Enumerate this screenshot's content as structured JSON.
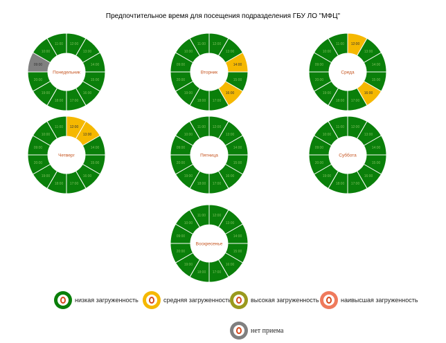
{
  "title": "Предпочтительное время для посещения подразделения ГБУ ЛО \"МФЦ\"",
  "colors": {
    "low": "#0a7f0a",
    "medium": "#f5b800",
    "high": "#9a9a1e",
    "highest": "#ef7a5c",
    "closed": "#808080"
  },
  "chart_data": [
    {
      "type": "pie",
      "day": "Понедельник",
      "slices": [
        {
          "label": "09:00",
          "status": "closed"
        },
        {
          "label": "10:00",
          "status": "low"
        },
        {
          "label": "11:00",
          "status": "low"
        },
        {
          "label": "12:00",
          "status": "low"
        },
        {
          "label": "13:00",
          "status": "low"
        },
        {
          "label": "14:00",
          "status": "low"
        },
        {
          "label": "15:00",
          "status": "low"
        },
        {
          "label": "16:00",
          "status": "low"
        },
        {
          "label": "17:00",
          "status": "low"
        },
        {
          "label": "18:00",
          "status": "low"
        },
        {
          "label": "19:00",
          "status": "low"
        },
        {
          "label": "20:00",
          "status": "low"
        }
      ]
    },
    {
      "type": "pie",
      "day": "Вторник",
      "slices": [
        {
          "label": "12:00",
          "status": "low"
        },
        {
          "label": "13:00",
          "status": "low"
        },
        {
          "label": "14:00",
          "status": "medium"
        },
        {
          "label": "15:00",
          "status": "low"
        },
        {
          "label": "16:00",
          "status": "medium"
        },
        {
          "label": "17:00",
          "status": "low"
        },
        {
          "label": "18:00",
          "status": "low"
        },
        {
          "label": "19:00",
          "status": "low"
        },
        {
          "label": "20:00",
          "status": "low"
        },
        {
          "label": "09:00",
          "status": "low"
        },
        {
          "label": "10:00",
          "status": "low"
        },
        {
          "label": "11:00",
          "status": "low"
        }
      ]
    },
    {
      "type": "pie",
      "day": "Среда",
      "slices": [
        {
          "label": "12:00",
          "status": "medium"
        },
        {
          "label": "13:00",
          "status": "low"
        },
        {
          "label": "14:00",
          "status": "low"
        },
        {
          "label": "15:00",
          "status": "low"
        },
        {
          "label": "16:00",
          "status": "medium"
        },
        {
          "label": "17:00",
          "status": "low"
        },
        {
          "label": "18:00",
          "status": "low"
        },
        {
          "label": "19:00",
          "status": "low"
        },
        {
          "label": "20:00",
          "status": "low"
        },
        {
          "label": "09:00",
          "status": "low"
        },
        {
          "label": "10:00",
          "status": "low"
        },
        {
          "label": "11:00",
          "status": "low"
        }
      ]
    },
    {
      "type": "pie",
      "day": "Четверг",
      "slices": [
        {
          "label": "12:00",
          "status": "medium"
        },
        {
          "label": "13:00",
          "status": "medium"
        },
        {
          "label": "14:00",
          "status": "low"
        },
        {
          "label": "15:00",
          "status": "low"
        },
        {
          "label": "16:00",
          "status": "low"
        },
        {
          "label": "17:00",
          "status": "low"
        },
        {
          "label": "18:00",
          "status": "low"
        },
        {
          "label": "19:00",
          "status": "low"
        },
        {
          "label": "20:00",
          "status": "low"
        },
        {
          "label": "09:00",
          "status": "low"
        },
        {
          "label": "10:00",
          "status": "low"
        },
        {
          "label": "11:00",
          "status": "low"
        }
      ]
    },
    {
      "type": "pie",
      "day": "Пятница",
      "slices": [
        {
          "label": "12:00",
          "status": "low"
        },
        {
          "label": "13:00",
          "status": "low"
        },
        {
          "label": "14:00",
          "status": "low"
        },
        {
          "label": "15:00",
          "status": "low"
        },
        {
          "label": "16:00",
          "status": "low"
        },
        {
          "label": "17:00",
          "status": "low"
        },
        {
          "label": "18:00",
          "status": "low"
        },
        {
          "label": "19:00",
          "status": "low"
        },
        {
          "label": "20:00",
          "status": "low"
        },
        {
          "label": "09:00",
          "status": "low"
        },
        {
          "label": "10:00",
          "status": "low"
        },
        {
          "label": "11:00",
          "status": "low"
        }
      ]
    },
    {
      "type": "pie",
      "day": "Суббота",
      "slices": [
        {
          "label": "12:00",
          "status": "low"
        },
        {
          "label": "13:00",
          "status": "low"
        },
        {
          "label": "14:00",
          "status": "low"
        },
        {
          "label": "15:00",
          "status": "low"
        },
        {
          "label": "16:00",
          "status": "low"
        },
        {
          "label": "17:00",
          "status": "low"
        },
        {
          "label": "18:00",
          "status": "low"
        },
        {
          "label": "19:00",
          "status": "low"
        },
        {
          "label": "20:00",
          "status": "low"
        },
        {
          "label": "09:00",
          "status": "low"
        },
        {
          "label": "10:00",
          "status": "low"
        },
        {
          "label": "11:00",
          "status": "low"
        }
      ]
    },
    {
      "type": "pie",
      "day": "Воскресенье",
      "slices": [
        {
          "label": "12:00",
          "status": "low"
        },
        {
          "label": "13:00",
          "status": "low"
        },
        {
          "label": "14:00",
          "status": "low"
        },
        {
          "label": "15:00",
          "status": "low"
        },
        {
          "label": "16:00",
          "status": "low"
        },
        {
          "label": "17:00",
          "status": "low"
        },
        {
          "label": "18:00",
          "status": "low"
        },
        {
          "label": "19:00",
          "status": "low"
        },
        {
          "label": "20:00",
          "status": "low"
        },
        {
          "label": "09:00",
          "status": "low"
        },
        {
          "label": "10:00",
          "status": "low"
        },
        {
          "label": "11:00",
          "status": "low"
        }
      ]
    }
  ],
  "legend": [
    {
      "status": "low",
      "label": "низкая загруженность"
    },
    {
      "status": "medium",
      "label": "средняя загруженность"
    },
    {
      "status": "high",
      "label": "высокая загруженность"
    },
    {
      "status": "highest",
      "label": "наивысшая загруженность"
    },
    {
      "status": "closed",
      "label": "нет приема"
    }
  ]
}
